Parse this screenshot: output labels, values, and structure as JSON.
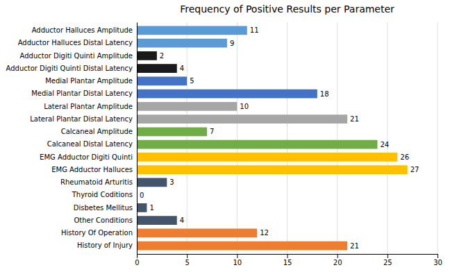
{
  "chart_data": {
    "type": "bar",
    "orientation": "horizontal",
    "title": "Frequency of Positive Results per Parameter",
    "categories": [
      "Adductor Halluces Amplitude",
      "Adductor Halluces Distal Latency",
      "Adductor Digiti Quinti Amplitude",
      "Adductor Digiti Quinti Distal Latency",
      "Medial Plantar Amplitude",
      "Medial Plantar Distal Latency",
      "Lateral Plantar Amplitude",
      "Lateral Plantar Distal Latency",
      "Calcaneal Amplitude",
      "Calcaneal Distal Latency",
      "EMG Adductor Digiti Quinti",
      "EMG Adductor Halluces",
      "Rheumatoid Arturitis",
      "Thyroid Coditions",
      "Disbetes Mellitus",
      "Other Conditions",
      "History Of Operation",
      "History of Injury"
    ],
    "values": [
      11,
      9,
      2,
      4,
      5,
      18,
      10,
      21,
      7,
      24,
      26,
      27,
      3,
      0,
      1,
      4,
      12,
      21
    ],
    "colors": [
      "#5b9bd5",
      "#5b9bd5",
      "#1a1a1a",
      "#1a1a1a",
      "#4472c4",
      "#4472c4",
      "#a6a6a6",
      "#a6a6a6",
      "#70ad47",
      "#70ad47",
      "#ffc000",
      "#ffc000",
      "#44546a",
      "#44546a",
      "#44546a",
      "#44546a",
      "#ed7d31",
      "#ed7d31"
    ],
    "xlim": [
      0,
      30
    ],
    "xticks": [
      0,
      5,
      10,
      15,
      20,
      25,
      30
    ],
    "grid": true,
    "data_labels": true
  }
}
